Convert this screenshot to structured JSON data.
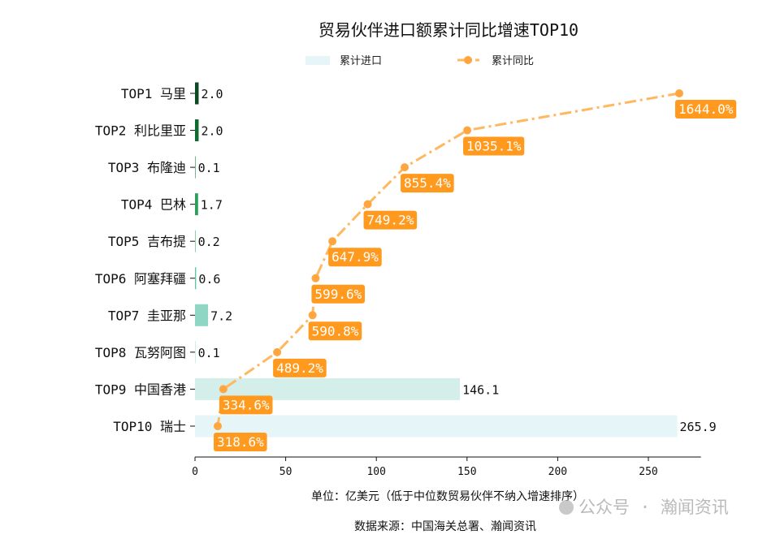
{
  "chart_data": {
    "type": "bar",
    "orientation": "horizontal",
    "title": "贸易伙伴进口额累计同比增速TOP10",
    "xlabel": "单位：亿美元（低于中位数贸易伙伴不纳入增速排序）",
    "source": "数据来源：中国海关总署、瀚闻资讯",
    "watermark": "公众号 · 瀚闻资讯",
    "xlim": [
      0,
      279
    ],
    "xticks": [
      0,
      50,
      100,
      150,
      200,
      250
    ],
    "legend": {
      "position": "top",
      "bar_label": "累计进口",
      "line_label": "累计同比"
    },
    "categories": [
      "TOP1 马里",
      "TOP2 利比里亚",
      "TOP3 布隆迪",
      "TOP4 巴林",
      "TOP5 吉布提",
      "TOP6 阿塞拜疆",
      "TOP7 圭亚那",
      "TOP8 瓦努阿图",
      "TOP9 中国香港",
      "TOP10 瑞士"
    ],
    "series": [
      {
        "name": "累计进口",
        "type": "bar",
        "values": [
          2.0,
          2.0,
          0.1,
          1.7,
          0.2,
          0.6,
          7.2,
          0.1,
          146.1,
          265.9
        ],
        "colors": [
          "#0b4a22",
          "#0f6a30",
          "#1c8044",
          "#2e9e5b",
          "#3fb575",
          "#5cc8a0",
          "#8fd6c4",
          "#aee2d6",
          "#d4efe9",
          "#e6f5f8"
        ]
      },
      {
        "name": "累计同比",
        "type": "line",
        "unit": "%",
        "values": [
          1644.0,
          1035.1,
          855.4,
          749.2,
          647.9,
          599.6,
          590.8,
          489.2,
          334.6,
          318.6
        ],
        "color": "#ffb860",
        "label_color": "#ff9a1f"
      }
    ]
  }
}
